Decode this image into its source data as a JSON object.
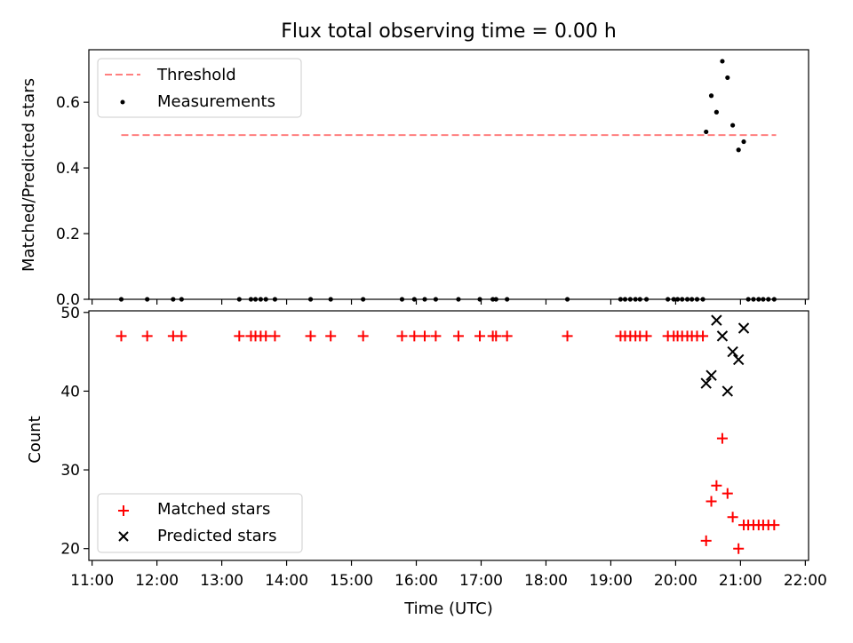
{
  "title": "Flux total observing time = 0.00 h",
  "xlabel": "Time (UTC)",
  "x_tick_labels": [
    "11:00",
    "12:00",
    "13:00",
    "14:00",
    "15:00",
    "16:00",
    "17:00",
    "18:00",
    "19:00",
    "20:00",
    "21:00",
    "22:00"
  ],
  "colors": {
    "threshold": "#ff7f7f",
    "measurement": "#000000",
    "matched": "#ff0000",
    "predicted": "#000000"
  },
  "chart_data": [
    {
      "type": "scatter",
      "ylabel": "Matched/Predicted stars",
      "xlim": [
        10.95,
        22.05
      ],
      "ylim": [
        0,
        0.76
      ],
      "y_ticks": [
        0.0,
        0.2,
        0.4,
        0.6
      ],
      "y_tick_labels": [
        "0.0",
        "0.2",
        "0.4",
        "0.6"
      ],
      "legend": {
        "position": "upper left",
        "entries": [
          "Threshold",
          "Measurements"
        ]
      },
      "threshold": {
        "name": "Threshold",
        "y": 0.5,
        "x_range": [
          11.45,
          21.55
        ]
      },
      "series": [
        {
          "name": "Measurements",
          "x": [
            11.45,
            11.85,
            12.25,
            12.38,
            13.27,
            13.45,
            13.52,
            13.6,
            13.68,
            13.82,
            14.37,
            14.68,
            15.18,
            15.78,
            15.97,
            16.13,
            16.3,
            16.65,
            16.98,
            17.18,
            17.23,
            17.4,
            18.33,
            19.15,
            19.22,
            19.3,
            19.38,
            19.45,
            19.55,
            19.88,
            19.97,
            20.03,
            20.1,
            20.18,
            20.25,
            20.33,
            20.42,
            20.47,
            20.55,
            20.63,
            20.72,
            20.8,
            20.88,
            20.97,
            21.05,
            21.12,
            21.2,
            21.28,
            21.35,
            21.43,
            21.52
          ],
          "y": [
            0,
            0,
            0,
            0,
            0,
            0,
            0,
            0,
            0,
            0,
            0,
            0,
            0,
            0,
            0,
            0,
            0,
            0,
            0,
            0,
            0,
            0,
            0,
            0,
            0,
            0,
            0,
            0,
            0,
            0,
            0,
            0,
            0,
            0,
            0,
            0,
            0,
            0.51,
            0.62,
            0.57,
            0.725,
            0.675,
            0.53,
            0.455,
            0.48,
            0,
            0,
            0,
            0,
            0,
            0
          ]
        }
      ]
    },
    {
      "type": "scatter",
      "ylabel": "Count",
      "xlim": [
        10.95,
        22.05
      ],
      "ylim": [
        18.5,
        50.2
      ],
      "y_ticks": [
        20,
        30,
        40,
        50
      ],
      "y_tick_labels": [
        "20",
        "30",
        "40",
        "50"
      ],
      "legend": {
        "position": "lower left",
        "entries": [
          "Matched stars",
          "Predicted stars"
        ]
      },
      "series": [
        {
          "name": "Matched stars",
          "marker": "+",
          "x": [
            11.45,
            11.85,
            12.25,
            12.38,
            13.27,
            13.45,
            13.52,
            13.6,
            13.68,
            13.82,
            14.37,
            14.68,
            15.18,
            15.78,
            15.97,
            16.13,
            16.3,
            16.65,
            16.98,
            17.18,
            17.23,
            17.4,
            18.33,
            19.15,
            19.22,
            19.3,
            19.38,
            19.45,
            19.55,
            19.88,
            19.97,
            20.03,
            20.1,
            20.18,
            20.25,
            20.33,
            20.42,
            20.47,
            20.55,
            20.63,
            20.72,
            20.8,
            20.88,
            20.97,
            21.05,
            21.12,
            21.2,
            21.28,
            21.35,
            21.43,
            21.52
          ],
          "y": [
            47,
            47,
            47,
            47,
            47,
            47,
            47,
            47,
            47,
            47,
            47,
            47,
            47,
            47,
            47,
            47,
            47,
            47,
            47,
            47,
            47,
            47,
            47,
            47,
            47,
            47,
            47,
            47,
            47,
            47,
            47,
            47,
            47,
            47,
            47,
            47,
            47,
            21,
            26,
            28,
            34,
            27,
            24,
            20,
            23,
            23,
            23,
            23,
            23,
            23,
            23
          ]
        },
        {
          "name": "Predicted stars",
          "marker": "x",
          "x": [
            20.47,
            20.55,
            20.63,
            20.72,
            20.8,
            20.88,
            20.97,
            21.05
          ],
          "y": [
            41,
            42,
            49,
            47,
            40,
            45,
            44,
            48
          ]
        }
      ]
    }
  ]
}
